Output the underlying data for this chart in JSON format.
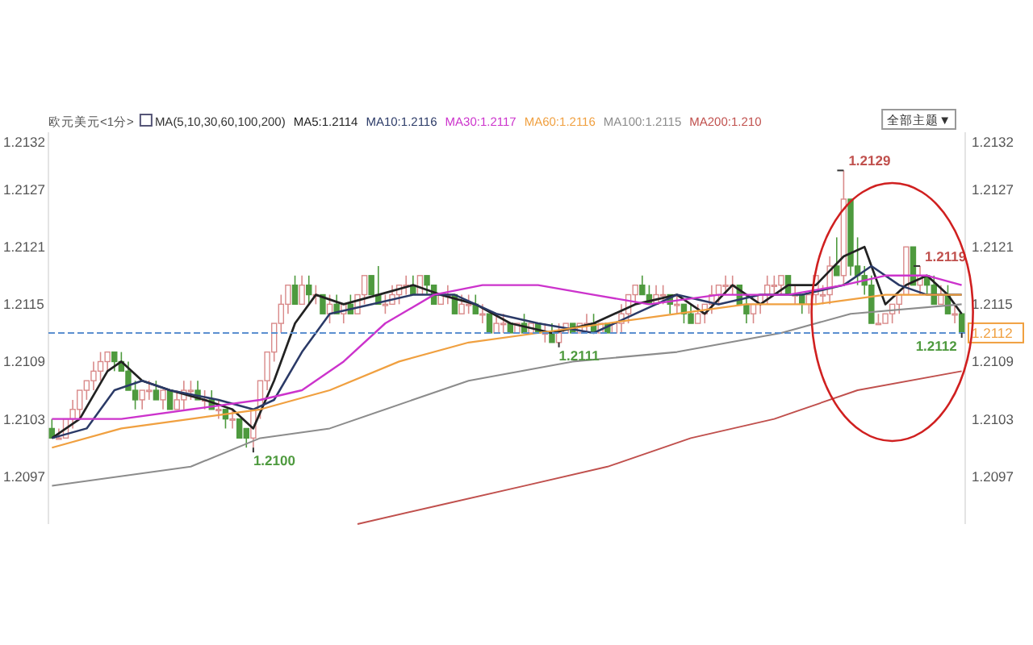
{
  "chart_data": {
    "type": "candlestick",
    "title": "欧元美元<1分>",
    "subtitle": "MA(5,10,30,60,100,200)",
    "categories": [
      null,
      null,
      null,
      null,
      null,
      null,
      null,
      null,
      null,
      null,
      null,
      null,
      null,
      null,
      null,
      null,
      null,
      null,
      null,
      null,
      null,
      null,
      null,
      null,
      null,
      null,
      null,
      null,
      null,
      null,
      null,
      null,
      null,
      null,
      null,
      null,
      null,
      null,
      null,
      null,
      null,
      null,
      null,
      null,
      null,
      null,
      null,
      null,
      null,
      null,
      null,
      null,
      null,
      null,
      null,
      null,
      null,
      null,
      null,
      null,
      null,
      null,
      null,
      null,
      null,
      null,
      null,
      null,
      null,
      null,
      null,
      null,
      null,
      null,
      null,
      null,
      null,
      null,
      null,
      null,
      null,
      null,
      null,
      null,
      null,
      null,
      null,
      null,
      null,
      null,
      null,
      null,
      null,
      null,
      null,
      null,
      null,
      null,
      null,
      null,
      null,
      null,
      null,
      null,
      null,
      null,
      null,
      null,
      null,
      null,
      null,
      null,
      null,
      null,
      null,
      null,
      null,
      null,
      null,
      null,
      null,
      null,
      null,
      null,
      null,
      null,
      null,
      null,
      null,
      null,
      null,
      null
    ],
    "ohlc": [
      [
        1.2102,
        1.2103,
        1.2101,
        1.2101
      ],
      [
        1.2101,
        1.2102,
        1.2101,
        1.2101
      ],
      [
        1.2101,
        1.2103,
        1.2101,
        1.2103
      ],
      [
        1.2103,
        1.2105,
        1.2102,
        1.2104
      ],
      [
        1.2104,
        1.2106,
        1.2103,
        1.2106
      ],
      [
        1.2106,
        1.2107,
        1.2105,
        1.2107
      ],
      [
        1.2107,
        1.2109,
        1.2106,
        1.2108
      ],
      [
        1.2108,
        1.211,
        1.2107,
        1.2109
      ],
      [
        1.2109,
        1.211,
        1.2108,
        1.211
      ],
      [
        1.211,
        1.211,
        1.2108,
        1.2109
      ],
      [
        1.2109,
        1.211,
        1.2108,
        1.2108
      ],
      [
        1.2108,
        1.2109,
        1.2106,
        1.2106
      ],
      [
        1.2106,
        1.2107,
        1.2104,
        1.2105
      ],
      [
        1.2105,
        1.2106,
        1.2104,
        1.2106
      ],
      [
        1.2106,
        1.2107,
        1.2105,
        1.2106
      ],
      [
        1.2106,
        1.2107,
        1.2105,
        1.2105
      ],
      [
        1.2105,
        1.2106,
        1.2104,
        1.2106
      ],
      [
        1.2106,
        1.2106,
        1.2104,
        1.2104
      ],
      [
        1.2104,
        1.2106,
        1.2104,
        1.2105
      ],
      [
        1.2105,
        1.2107,
        1.2104,
        1.2106
      ],
      [
        1.2106,
        1.2107,
        1.2105,
        1.2106
      ],
      [
        1.2106,
        1.2107,
        1.2105,
        1.2105
      ],
      [
        1.2105,
        1.2106,
        1.2104,
        1.2105
      ],
      [
        1.2105,
        1.2106,
        1.2104,
        1.2104
      ],
      [
        1.2104,
        1.2105,
        1.2103,
        1.2104
      ],
      [
        1.2104,
        1.2104,
        1.2102,
        1.2103
      ],
      [
        1.2103,
        1.2104,
        1.2102,
        1.2103
      ],
      [
        1.2103,
        1.2103,
        1.2101,
        1.2101
      ],
      [
        1.2102,
        1.2102,
        1.21,
        1.2101
      ],
      [
        1.2101,
        1.2104,
        1.21,
        1.2104
      ],
      [
        1.2104,
        1.2107,
        1.2103,
        1.2107
      ],
      [
        1.2107,
        1.211,
        1.2106,
        1.211
      ],
      [
        1.211,
        1.2113,
        1.2109,
        1.2113
      ],
      [
        1.2113,
        1.2116,
        1.2112,
        1.2115
      ],
      [
        1.2115,
        1.2117,
        1.2114,
        1.2117
      ],
      [
        1.2117,
        1.2118,
        1.2115,
        1.2115
      ],
      [
        1.2115,
        1.2118,
        1.2115,
        1.2117
      ],
      [
        1.2117,
        1.2118,
        1.2115,
        1.2116
      ],
      [
        1.2116,
        1.2117,
        1.2115,
        1.2116
      ],
      [
        1.2116,
        1.2116,
        1.2114,
        1.2114
      ],
      [
        1.2114,
        1.2116,
        1.2113,
        1.2115
      ],
      [
        1.2115,
        1.2116,
        1.2114,
        1.2114
      ],
      [
        1.2114,
        1.2115,
        1.2113,
        1.2115
      ],
      [
        1.2115,
        1.2116,
        1.2114,
        1.2114
      ],
      [
        1.2114,
        1.2116,
        1.2114,
        1.2116
      ],
      [
        1.2116,
        1.2118,
        1.2115,
        1.2118
      ],
      [
        1.2118,
        1.2118,
        1.2116,
        1.2116
      ],
      [
        1.2116,
        1.2119,
        1.2115,
        1.2115
      ],
      [
        1.2115,
        1.2116,
        1.2114,
        1.2115
      ],
      [
        1.2115,
        1.2117,
        1.2115,
        1.2116
      ],
      [
        1.2116,
        1.2117,
        1.2115,
        1.2117
      ],
      [
        1.2117,
        1.2118,
        1.2116,
        1.2117
      ],
      [
        1.2117,
        1.2118,
        1.2116,
        1.2116
      ],
      [
        1.2116,
        1.2118,
        1.2116,
        1.2118
      ],
      [
        1.2118,
        1.2118,
        1.2116,
        1.2117
      ],
      [
        1.2117,
        1.2117,
        1.2115,
        1.2115
      ],
      [
        1.2115,
        1.2116,
        1.2115,
        1.2116
      ],
      [
        1.2116,
        1.2117,
        1.2115,
        1.2116
      ],
      [
        1.2116,
        1.2116,
        1.2114,
        1.2114
      ],
      [
        1.2114,
        1.2116,
        1.2114,
        1.2115
      ],
      [
        1.2115,
        1.2116,
        1.2114,
        1.2115
      ],
      [
        1.2115,
        1.2116,
        1.2114,
        1.2114
      ],
      [
        1.2114,
        1.2115,
        1.2113,
        1.2114
      ],
      [
        1.2114,
        1.2114,
        1.2112,
        1.2112
      ],
      [
        1.2112,
        1.2114,
        1.2112,
        1.2113
      ],
      [
        1.2113,
        1.2114,
        1.2112,
        1.2113
      ],
      [
        1.2113,
        1.2113,
        1.2112,
        1.2112
      ],
      [
        1.2112,
        1.2113,
        1.2112,
        1.2113
      ],
      [
        1.2113,
        1.2114,
        1.2112,
        1.2112
      ],
      [
        1.2112,
        1.2113,
        1.2112,
        1.2113
      ],
      [
        1.2113,
        1.2113,
        1.2112,
        1.2112
      ],
      [
        1.2112,
        1.2113,
        1.2111,
        1.2112
      ],
      [
        1.2112,
        1.2113,
        1.2111,
        1.2111
      ],
      [
        1.2111,
        1.2113,
        1.2111,
        1.2112
      ],
      [
        1.2112,
        1.2113,
        1.2112,
        1.2113
      ],
      [
        1.2113,
        1.2113,
        1.2112,
        1.2112
      ],
      [
        1.2112,
        1.2113,
        1.2112,
        1.2113
      ],
      [
        1.2113,
        1.2114,
        1.2112,
        1.2113
      ],
      [
        1.2113,
        1.2114,
        1.2112,
        1.2112
      ],
      [
        1.2112,
        1.2113,
        1.2112,
        1.2113
      ],
      [
        1.2113,
        1.2113,
        1.2112,
        1.2112
      ],
      [
        1.2112,
        1.2113,
        1.2112,
        1.2113
      ],
      [
        1.2113,
        1.2115,
        1.2112,
        1.2114
      ],
      [
        1.2114,
        1.2116,
        1.2113,
        1.2116
      ],
      [
        1.2116,
        1.2117,
        1.2115,
        1.2117
      ],
      [
        1.2117,
        1.2118,
        1.2116,
        1.2116
      ],
      [
        1.2116,
        1.2117,
        1.2115,
        1.2115
      ],
      [
        1.2115,
        1.2117,
        1.2115,
        1.2116
      ],
      [
        1.2116,
        1.2117,
        1.2115,
        1.2116
      ],
      [
        1.2116,
        1.2116,
        1.2114,
        1.2115
      ],
      [
        1.2115,
        1.2116,
        1.2114,
        1.2115
      ],
      [
        1.2115,
        1.2115,
        1.2113,
        1.2114
      ],
      [
        1.2114,
        1.2115,
        1.2113,
        1.2113
      ],
      [
        1.2113,
        1.2115,
        1.2113,
        1.2114
      ],
      [
        1.2114,
        1.2115,
        1.2113,
        1.2115
      ],
      [
        1.2115,
        1.2117,
        1.2114,
        1.2116
      ],
      [
        1.2116,
        1.2117,
        1.2115,
        1.2117
      ],
      [
        1.2117,
        1.2118,
        1.2116,
        1.2117
      ],
      [
        1.2117,
        1.2118,
        1.2116,
        1.2117
      ],
      [
        1.2117,
        1.2117,
        1.2115,
        1.2115
      ],
      [
        1.2115,
        1.2116,
        1.2113,
        1.2114
      ],
      [
        1.2114,
        1.2115,
        1.2113,
        1.2115
      ],
      [
        1.2115,
        1.2116,
        1.2114,
        1.2116
      ],
      [
        1.2116,
        1.2118,
        1.2115,
        1.2117
      ],
      [
        1.2117,
        1.2118,
        1.2116,
        1.2117
      ],
      [
        1.2117,
        1.2118,
        1.2116,
        1.2118
      ],
      [
        1.2118,
        1.2118,
        1.2116,
        1.2116
      ],
      [
        1.2116,
        1.2117,
        1.2115,
        1.2116
      ],
      [
        1.2116,
        1.2116,
        1.2114,
        1.2115
      ],
      [
        1.2115,
        1.2116,
        1.2114,
        1.2116
      ],
      [
        1.2116,
        1.2118,
        1.2115,
        1.2118
      ],
      [
        1.2116,
        1.2117,
        1.2115,
        1.2116
      ],
      [
        1.2116,
        1.212,
        1.2115,
        1.2119
      ],
      [
        1.2119,
        1.2122,
        1.2118,
        1.2118
      ],
      [
        1.2118,
        1.2129,
        1.2117,
        1.2126
      ],
      [
        1.2126,
        1.2126,
        1.2118,
        1.2119
      ],
      [
        1.2119,
        1.2122,
        1.2117,
        1.2118
      ],
      [
        1.2118,
        1.2119,
        1.2116,
        1.2117
      ],
      [
        1.2117,
        1.2118,
        1.2113,
        1.2113
      ],
      [
        1.2113,
        1.2114,
        1.2113,
        1.2113
      ],
      [
        1.2113,
        1.2114,
        1.2113,
        1.2114
      ],
      [
        1.2114,
        1.2115,
        1.2113,
        1.2115
      ],
      [
        1.2115,
        1.2116,
        1.2114,
        1.2116
      ],
      [
        1.2116,
        1.2121,
        1.2116,
        1.2121
      ],
      [
        1.2121,
        1.2121,
        1.2117,
        1.2117
      ],
      [
        1.2117,
        1.2119,
        1.2116,
        1.2118
      ],
      [
        1.2118,
        1.2118,
        1.2116,
        1.2117
      ],
      [
        1.2117,
        1.2118,
        1.2115,
        1.2115
      ],
      [
        1.2115,
        1.2117,
        1.2115,
        1.2116
      ],
      [
        1.2116,
        1.2117,
        1.2114,
        1.2114
      ],
      [
        1.2114,
        1.2115,
        1.2113,
        1.2114
      ],
      [
        1.2114,
        1.2114,
        1.2112,
        1.2112
      ]
    ],
    "series": [
      {
        "name": "MA5:1.2114",
        "type": "line",
        "color": "#222222",
        "values": [
          1.2101,
          null,
          null,
          null,
          1.2103,
          null,
          null,
          null,
          1.2108,
          null,
          1.2109,
          null,
          null,
          1.2107,
          null,
          null,
          null,
          1.2106,
          null,
          null,
          null,
          null,
          1.2105,
          null,
          null,
          null,
          1.2104,
          null,
          null,
          1.2102,
          null,
          null,
          1.2107,
          null,
          null,
          1.2113,
          null,
          null,
          1.2116,
          null,
          null,
          null,
          1.2115,
          null,
          null,
          null,
          null,
          1.2116,
          null,
          null,
          null,
          null,
          1.2117,
          null,
          null,
          null,
          1.2116,
          null,
          null,
          null,
          null,
          1.2115,
          null,
          null,
          null,
          null,
          1.2113,
          null,
          null,
          null,
          null,
          null,
          1.2112,
          null,
          null,
          null,
          null,
          null,
          1.2113,
          null,
          null,
          null,
          null,
          null,
          1.2115,
          null,
          null,
          null,
          null,
          null,
          1.2116,
          null,
          null,
          null,
          1.2114,
          null,
          null,
          null,
          1.2117,
          null,
          null,
          null,
          1.2115,
          null,
          null,
          null,
          1.2117,
          null,
          null,
          null,
          1.2117,
          null,
          null,
          null,
          1.212,
          null,
          null,
          1.2121,
          null,
          null,
          1.2115,
          null,
          null,
          1.2117,
          null,
          null,
          1.2118,
          null,
          null,
          1.2116,
          null,
          1.2114
        ]
      },
      {
        "name": "MA10:1.2116",
        "type": "line",
        "color": "#2b3a67",
        "values": [
          1.2101,
          null,
          null,
          null,
          null,
          1.2102,
          null,
          null,
          null,
          1.2106,
          null,
          null,
          null,
          1.2107,
          null,
          null,
          null,
          1.2106,
          null,
          null,
          null,
          null,
          null,
          null,
          1.2105,
          null,
          null,
          null,
          null,
          1.2104,
          null,
          null,
          1.2105,
          null,
          null,
          null,
          1.211,
          null,
          null,
          null,
          1.2114,
          null,
          null,
          null,
          null,
          null,
          1.2115,
          null,
          null,
          null,
          null,
          null,
          1.2116,
          null,
          null,
          null,
          null,
          null,
          1.2116,
          null,
          null,
          null,
          null,
          null,
          1.2114,
          null,
          null,
          null,
          null,
          null,
          1.2113,
          null,
          null,
          null,
          null,
          null,
          null,
          null,
          1.2112,
          null,
          null,
          null,
          null,
          null,
          1.2114,
          null,
          null,
          null,
          null,
          null,
          1.2116,
          null,
          null,
          null,
          null,
          null,
          1.2115,
          null,
          null,
          null,
          null,
          null,
          1.2116,
          null,
          null,
          null,
          null,
          null,
          1.2116,
          null,
          null,
          null,
          null,
          null,
          1.2117,
          null,
          null,
          null,
          1.2119,
          null,
          null,
          null,
          1.2117,
          null,
          null,
          null,
          1.2116,
          null,
          null,
          null,
          null,
          1.2116
        ]
      },
      {
        "name": "MA30:1.2117",
        "type": "line",
        "color": "#cc33cc",
        "values": [
          1.2103,
          null,
          null,
          null,
          null,
          null,
          null,
          null,
          null,
          null,
          1.2103,
          null,
          null,
          null,
          null,
          null,
          null,
          null,
          null,
          null,
          1.2104,
          null,
          null,
          null,
          null,
          null,
          null,
          null,
          null,
          null,
          1.2105,
          null,
          null,
          null,
          null,
          null,
          1.2106,
          null,
          null,
          null,
          null,
          null,
          1.2109,
          null,
          null,
          null,
          null,
          null,
          1.2113,
          null,
          null,
          null,
          null,
          null,
          null,
          1.2116,
          null,
          null,
          null,
          null,
          null,
          null,
          1.2117,
          null,
          null,
          null,
          null,
          null,
          null,
          null,
          1.2117,
          null,
          null,
          null,
          null,
          null,
          null,
          null,
          1.2116,
          null,
          null,
          null,
          null,
          null,
          null,
          null,
          1.2115,
          null,
          null,
          null,
          null,
          null,
          null,
          null,
          null,
          null,
          1.2116,
          null,
          null,
          null,
          null,
          null,
          null,
          null,
          null,
          null,
          1.2116,
          null,
          null,
          null,
          null,
          null,
          null,
          null,
          1.2117,
          null,
          null,
          null,
          null,
          null,
          1.2118,
          null,
          null,
          null,
          null,
          null,
          1.2118,
          null,
          null,
          null,
          null,
          1.2117
        ]
      },
      {
        "name": "MA60:1.2116",
        "type": "line",
        "color": "#f0a040",
        "values": [
          1.21,
          null,
          null,
          null,
          null,
          null,
          null,
          null,
          null,
          null,
          1.2102,
          null,
          null,
          null,
          null,
          null,
          null,
          null,
          null,
          null,
          1.2103,
          null,
          null,
          null,
          null,
          null,
          null,
          null,
          null,
          null,
          1.2104,
          null,
          null,
          null,
          null,
          null,
          null,
          null,
          null,
          null,
          1.2106,
          null,
          null,
          null,
          null,
          null,
          null,
          null,
          null,
          null,
          1.2109,
          null,
          null,
          null,
          null,
          null,
          null,
          null,
          null,
          null,
          1.2111,
          null,
          null,
          null,
          null,
          null,
          null,
          null,
          null,
          null,
          1.2112,
          null,
          null,
          null,
          null,
          null,
          null,
          null,
          null,
          null,
          1.2113,
          null,
          null,
          null,
          null,
          null,
          null,
          null,
          null,
          null,
          1.2114,
          null,
          null,
          null,
          null,
          null,
          null,
          null,
          null,
          null,
          1.2115,
          null,
          null,
          null,
          null,
          null,
          null,
          null,
          null,
          null,
          1.2115,
          null,
          null,
          null,
          null,
          null,
          null,
          null,
          null,
          null,
          1.2116,
          null,
          null,
          null,
          null,
          null,
          null,
          null,
          null,
          null,
          null,
          1.2116
        ]
      },
      {
        "name": "MA100:1.2115",
        "type": "line",
        "color": "#8c8c8c",
        "values": [
          1.2096,
          null,
          null,
          null,
          null,
          null,
          null,
          null,
          null,
          null,
          null,
          null,
          null,
          null,
          null,
          null,
          null,
          null,
          null,
          null,
          1.2098,
          null,
          null,
          null,
          null,
          null,
          null,
          null,
          null,
          null,
          1.2101,
          null,
          null,
          null,
          null,
          null,
          null,
          null,
          null,
          null,
          1.2102,
          null,
          null,
          null,
          null,
          null,
          null,
          null,
          null,
          null,
          null,
          null,
          null,
          null,
          null,
          null,
          null,
          null,
          null,
          null,
          1.2107,
          null,
          null,
          null,
          null,
          null,
          null,
          null,
          null,
          null,
          null,
          null,
          null,
          null,
          null,
          1.2109,
          null,
          null,
          null,
          null,
          null,
          null,
          null,
          null,
          null,
          null,
          null,
          null,
          null,
          null,
          1.211,
          null,
          null,
          null,
          null,
          null,
          null,
          null,
          null,
          null,
          null,
          null,
          null,
          null,
          null,
          1.2112,
          null,
          null,
          null,
          null,
          null,
          null,
          null,
          null,
          null,
          1.2114,
          null,
          null,
          null,
          null,
          null,
          null,
          null,
          null,
          null,
          null,
          null,
          null,
          null,
          null,
          null,
          1.2115
        ]
      },
      {
        "name": "MA200:1.210",
        "type": "line",
        "color": "#c0504d",
        "values": [
          null,
          null,
          null,
          null,
          null,
          null,
          null,
          null,
          null,
          null,
          null,
          null,
          null,
          null,
          null,
          null,
          null,
          null,
          null,
          null,
          null,
          null,
          null,
          null,
          null,
          null,
          null,
          null,
          null,
          null,
          null,
          null,
          null,
          null,
          null,
          null,
          null,
          null,
          null,
          null,
          null,
          null,
          null,
          null,
          1.2092,
          null,
          null,
          null,
          null,
          null,
          null,
          null,
          null,
          null,
          null,
          null,
          1.2094,
          null,
          null,
          null,
          null,
          null,
          null,
          null,
          null,
          null,
          null,
          null,
          1.2096,
          null,
          null,
          null,
          null,
          null,
          null,
          null,
          null,
          null,
          null,
          null,
          1.2098,
          null,
          null,
          null,
          null,
          null,
          null,
          null,
          null,
          null,
          null,
          null,
          1.2101,
          null,
          null,
          null,
          null,
          null,
          null,
          null,
          null,
          null,
          null,
          null,
          1.2103,
          null,
          null,
          null,
          null,
          null,
          null,
          null,
          null,
          null,
          null,
          null,
          1.2106,
          null,
          null,
          null,
          null,
          null,
          null,
          null,
          null,
          null,
          null,
          null,
          null,
          null,
          null,
          1.2108
        ]
      }
    ],
    "ylim": [
      1.2092,
      1.2133
    ],
    "yticks": [
      1.2097,
      1.2103,
      1.2109,
      1.2115,
      1.2121,
      1.2127,
      1.2132
    ],
    "y2lim": [
      1.2092,
      1.2133
    ],
    "y2ticks": [
      1.2097,
      1.2103,
      1.2109,
      1.2115,
      1.2121,
      1.2127,
      1.2132
    ],
    "ref_lines": [
      {
        "axis": "y",
        "value": 1.2112,
        "label": "1.2112",
        "color": "#5b8fd0",
        "line_style": "dashed"
      }
    ],
    "annotations": [
      "1.2100",
      "1.2119",
      "1.2111",
      "1.2129",
      "1.2112",
      "全部主题▼"
    ],
    "legend": "top",
    "grid": false
  }
}
